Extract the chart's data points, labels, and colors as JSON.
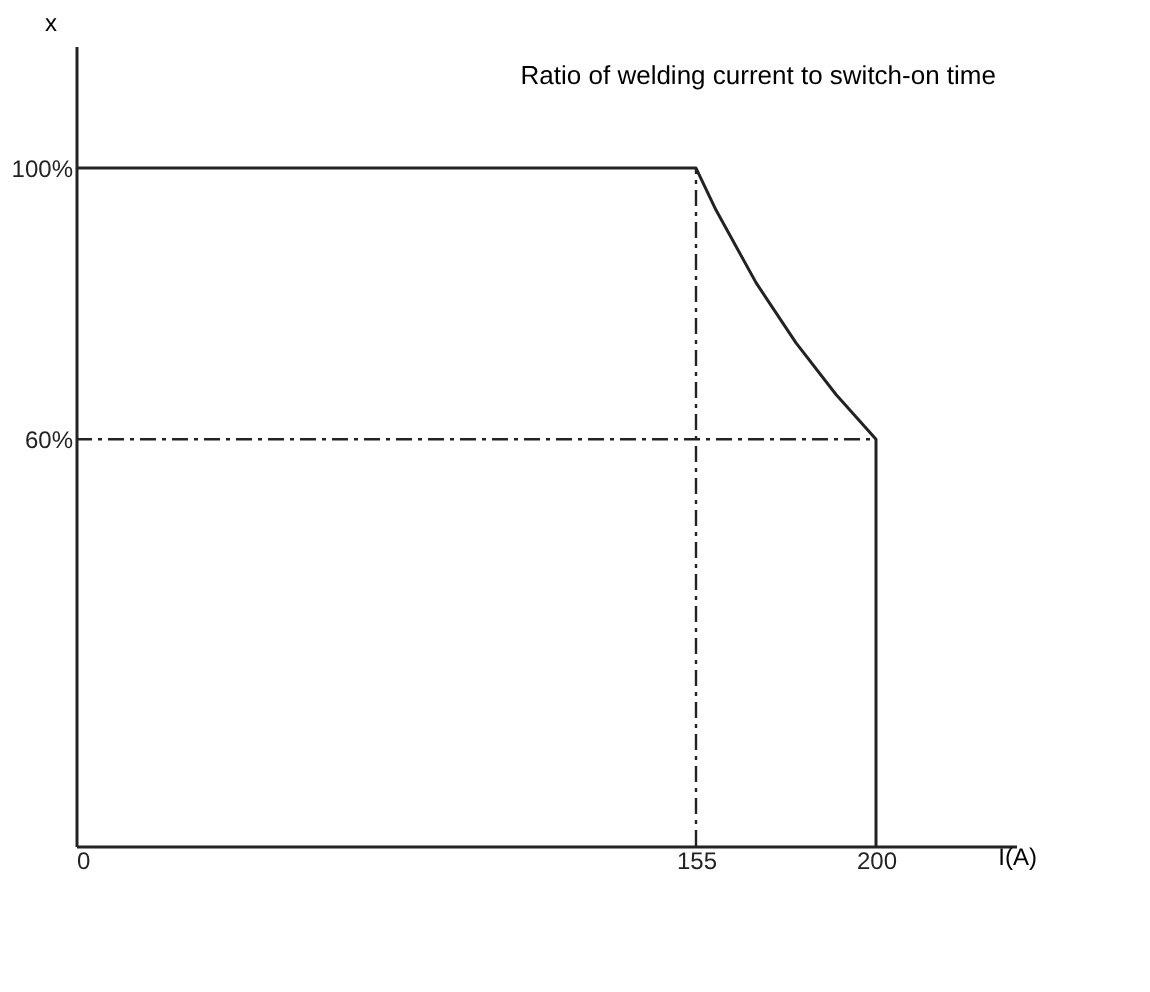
{
  "chart_data": {
    "type": "line",
    "title": "Ratio of welding current to switch-on time",
    "xlabel": "I(A)",
    "ylabel": "x",
    "x": [
      0,
      155,
      160,
      170,
      180,
      190,
      200,
      200
    ],
    "series": [
      {
        "color": "#222222",
        "values": [
          100,
          100,
          93.8,
          83.1,
          74.2,
          66.6,
          60,
          0
        ]
      }
    ],
    "xlim": [
      0,
      235
    ],
    "ylim": [
      0,
      118
    ],
    "xticks": [
      0,
      155,
      200
    ],
    "yticks": [
      {
        "value": 60,
        "label": "60%"
      },
      {
        "value": 100,
        "label": "100%"
      }
    ],
    "ref_lines": [
      {
        "axis": "x",
        "value": 155,
        "color": "#222222",
        "line_style": "dashed"
      },
      {
        "axis": "y",
        "value": 60,
        "color": "#222222",
        "line_style": "dashed"
      }
    ],
    "grid": false,
    "marker": "none",
    "line_style": "solid"
  }
}
